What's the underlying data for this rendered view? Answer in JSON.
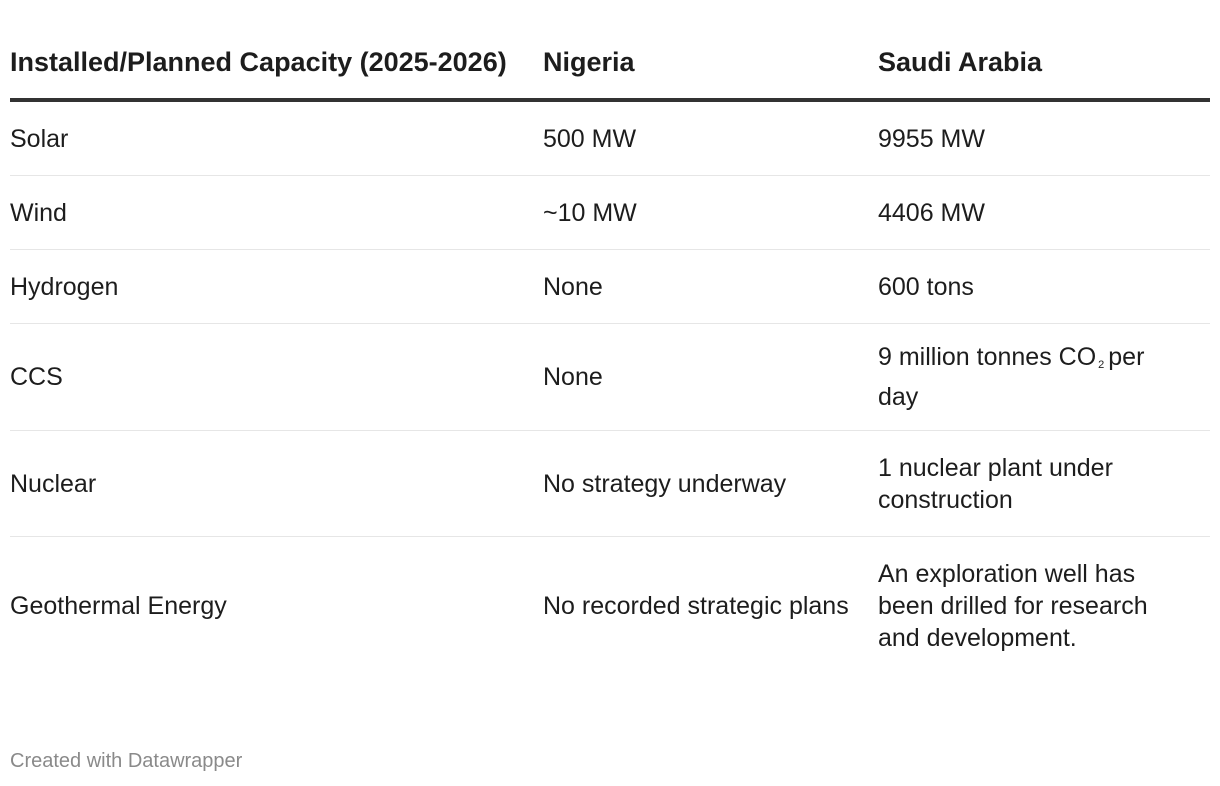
{
  "chart_data": {
    "type": "table",
    "columns": [
      "Installed/Planned Capacity (2025-2026)",
      "Nigeria",
      "Saudi Arabia"
    ],
    "rows": [
      {
        "label": "Solar",
        "nigeria": "500 MW",
        "saudi": "9955 MW"
      },
      {
        "label": "Wind",
        "nigeria": "~10 MW",
        "saudi": "4406 MW"
      },
      {
        "label": "Hydrogen",
        "nigeria": "None",
        "saudi": "600 tons"
      },
      {
        "label": "CCS",
        "nigeria": "None",
        "saudi_pre": "9 million tonnes CO",
        "saudi_sub": "2",
        "saudi_post": "per day"
      },
      {
        "label": "Nuclear",
        "nigeria": "No strategy underway",
        "saudi": "1 nuclear plant under construction"
      },
      {
        "label": "Geothermal Energy",
        "nigeria": "No recorded strategic plans",
        "saudi": "An exploration well has been drilled for research and development."
      }
    ]
  },
  "footer": "Created with Datawrapper",
  "colors": {
    "text": "#1d1d1d",
    "header_rule": "#333333",
    "row_rule": "#e6e6e6",
    "footer": "#8a8a8a"
  }
}
